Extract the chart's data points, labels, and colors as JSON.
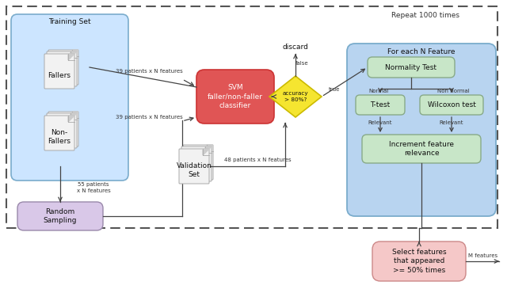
{
  "fig_width": 6.4,
  "fig_height": 3.65,
  "dpi": 100,
  "bg_color": "#ffffff",
  "repeat_text": "Repeat 1000 times",
  "training_set_label": "Training Set",
  "fallers_label": "Fallers",
  "non_fallers_label": "Non-\nFallers",
  "random_sampling_label": "Random\nSampling",
  "svm_label": "SVM\nfaller/non-faller\nclassifier",
  "accuracy_label": "accuracy\n> 80%?",
  "discard_label": "discard",
  "false_label": "false",
  "true_label": "true",
  "validation_set_label": "Validation\nSet",
  "for_each_label": "For each N Feature",
  "normality_label": "Normality Test",
  "normal_label": "Normal",
  "non_normal_label": "Non normal",
  "ttest_label": "T-test",
  "wilcoxon_label": "Wilcoxon test",
  "relevant_left_label": "Relevant",
  "relevant_right_label": "Relevant",
  "increment_label": "Increment feature\nrelevance",
  "select_label": "Select features\nthat appeared\n>= 50% times",
  "m_features_label": "M features",
  "arrow1_label": "39 patients x N features",
  "arrow2_label": "39 patients x N features",
  "arrow3_label": "55 patients\nx N features",
  "arrow4_label": "48 patients x N features",
  "training_box_color": "#cce5ff",
  "training_box_edge": "#7aaccc",
  "random_sampling_color": "#d9c8e8",
  "random_sampling_edge": "#9988aa",
  "svm_color": "#e05555",
  "svm_edge": "#cc3333",
  "accuracy_color": "#f5e530",
  "accuracy_edge": "#ccbb00",
  "for_each_color": "#b8d4f0",
  "for_each_edge": "#7aaccc",
  "normality_color": "#c8e6c8",
  "normality_edge": "#88aa88",
  "ttest_color": "#c8e6c8",
  "ttest_edge": "#88aa88",
  "wilcoxon_color": "#c8e6c8",
  "wilcoxon_edge": "#88aa88",
  "increment_color": "#c8e6c8",
  "increment_edge": "#88aa88",
  "select_color": "#f5c8c8",
  "select_edge": "#cc8888",
  "outer_dashed_color": "#555555",
  "arrow_color": "#444444",
  "font_size": 6.5,
  "small_font_size": 5.5,
  "label_font_size": 5.0
}
